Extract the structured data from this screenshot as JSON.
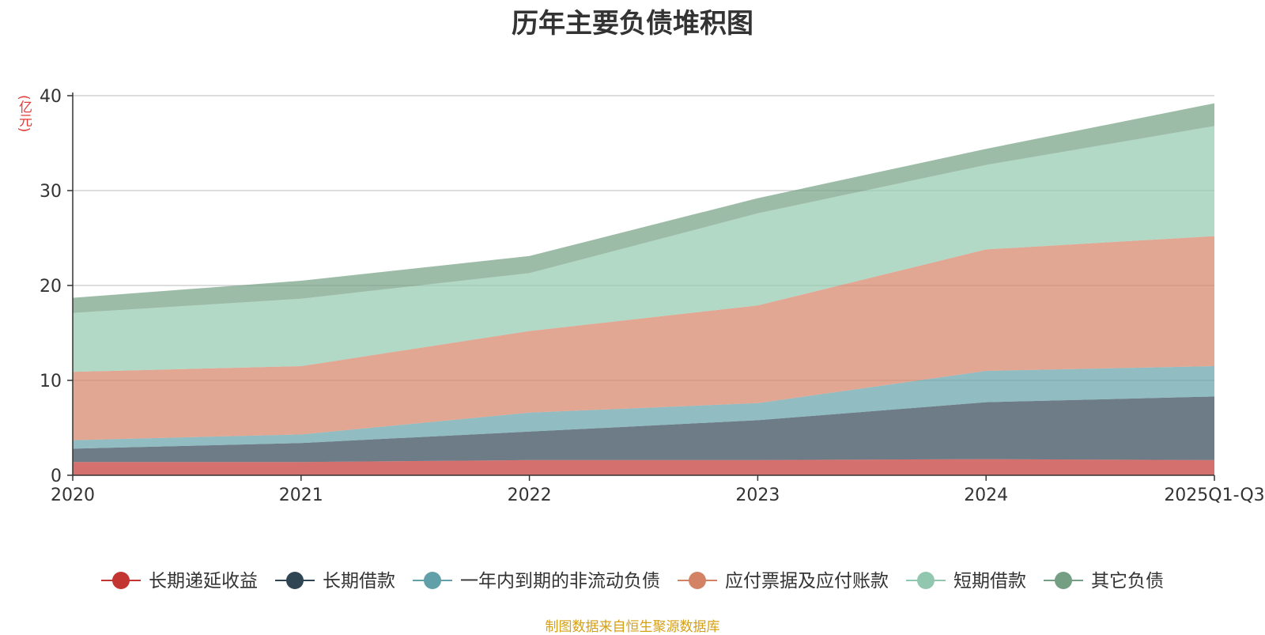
{
  "chart_data": {
    "type": "area",
    "stacked": true,
    "title": "历年主要负债堆积图",
    "unit_label": "(亿元)",
    "categories": [
      "2020",
      "2021",
      "2022",
      "2023",
      "2024",
      "2025Q1-Q3"
    ],
    "y_ticks": [
      "0",
      "10",
      "20",
      "30",
      "40"
    ],
    "ylim": [
      0,
      40
    ],
    "grid": true,
    "legend_position": "bottom",
    "series": [
      {
        "name": "长期递延收益",
        "color": "#c23531",
        "values": [
          1.4,
          1.4,
          1.6,
          1.6,
          1.7,
          1.6
        ]
      },
      {
        "name": "长期借款",
        "color": "#2f4554",
        "values": [
          1.4,
          2.0,
          3.0,
          4.2,
          6.0,
          6.7
        ]
      },
      {
        "name": "一年内到期的非流动负债",
        "color": "#61a0a8",
        "values": [
          0.9,
          0.9,
          2.0,
          1.8,
          3.3,
          3.2
        ]
      },
      {
        "name": "应付票据及应付账款",
        "color": "#d48265",
        "values": [
          7.2,
          7.2,
          8.6,
          10.3,
          12.8,
          13.7
        ]
      },
      {
        "name": "短期借款",
        "color": "#91c7ae",
        "values": [
          6.2,
          7.1,
          6.1,
          9.7,
          8.9,
          11.6
        ]
      },
      {
        "name": "其它负债",
        "color": "#749f83",
        "values": [
          1.6,
          1.9,
          1.8,
          1.6,
          1.7,
          2.4
        ]
      }
    ]
  },
  "source_note": "制图数据来自恒生聚源数据库"
}
